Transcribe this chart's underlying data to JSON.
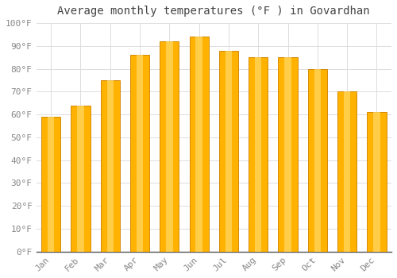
{
  "title": "Average monthly temperatures (°F ) in Govardhan",
  "months": [
    "Jan",
    "Feb",
    "Mar",
    "Apr",
    "May",
    "Jun",
    "Jul",
    "Aug",
    "Sep",
    "Oct",
    "Nov",
    "Dec"
  ],
  "values": [
    59,
    64,
    75,
    86,
    92,
    94,
    88,
    85,
    85,
    80,
    70,
    61
  ],
  "bar_color_center": "#FFBF00",
  "bar_color_edge": "#F5A623",
  "ylim": [
    0,
    100
  ],
  "yticks": [
    0,
    10,
    20,
    30,
    40,
    50,
    60,
    70,
    80,
    90,
    100
  ],
  "ytick_labels": [
    "0°F",
    "10°F",
    "20°F",
    "30°F",
    "40°F",
    "50°F",
    "60°F",
    "70°F",
    "80°F",
    "90°F",
    "100°F"
  ],
  "background_color": "#ffffff",
  "grid_color": "#dddddd",
  "title_fontsize": 10,
  "tick_fontsize": 8,
  "font_family": "monospace",
  "tick_color": "#888888",
  "bar_width": 0.65
}
